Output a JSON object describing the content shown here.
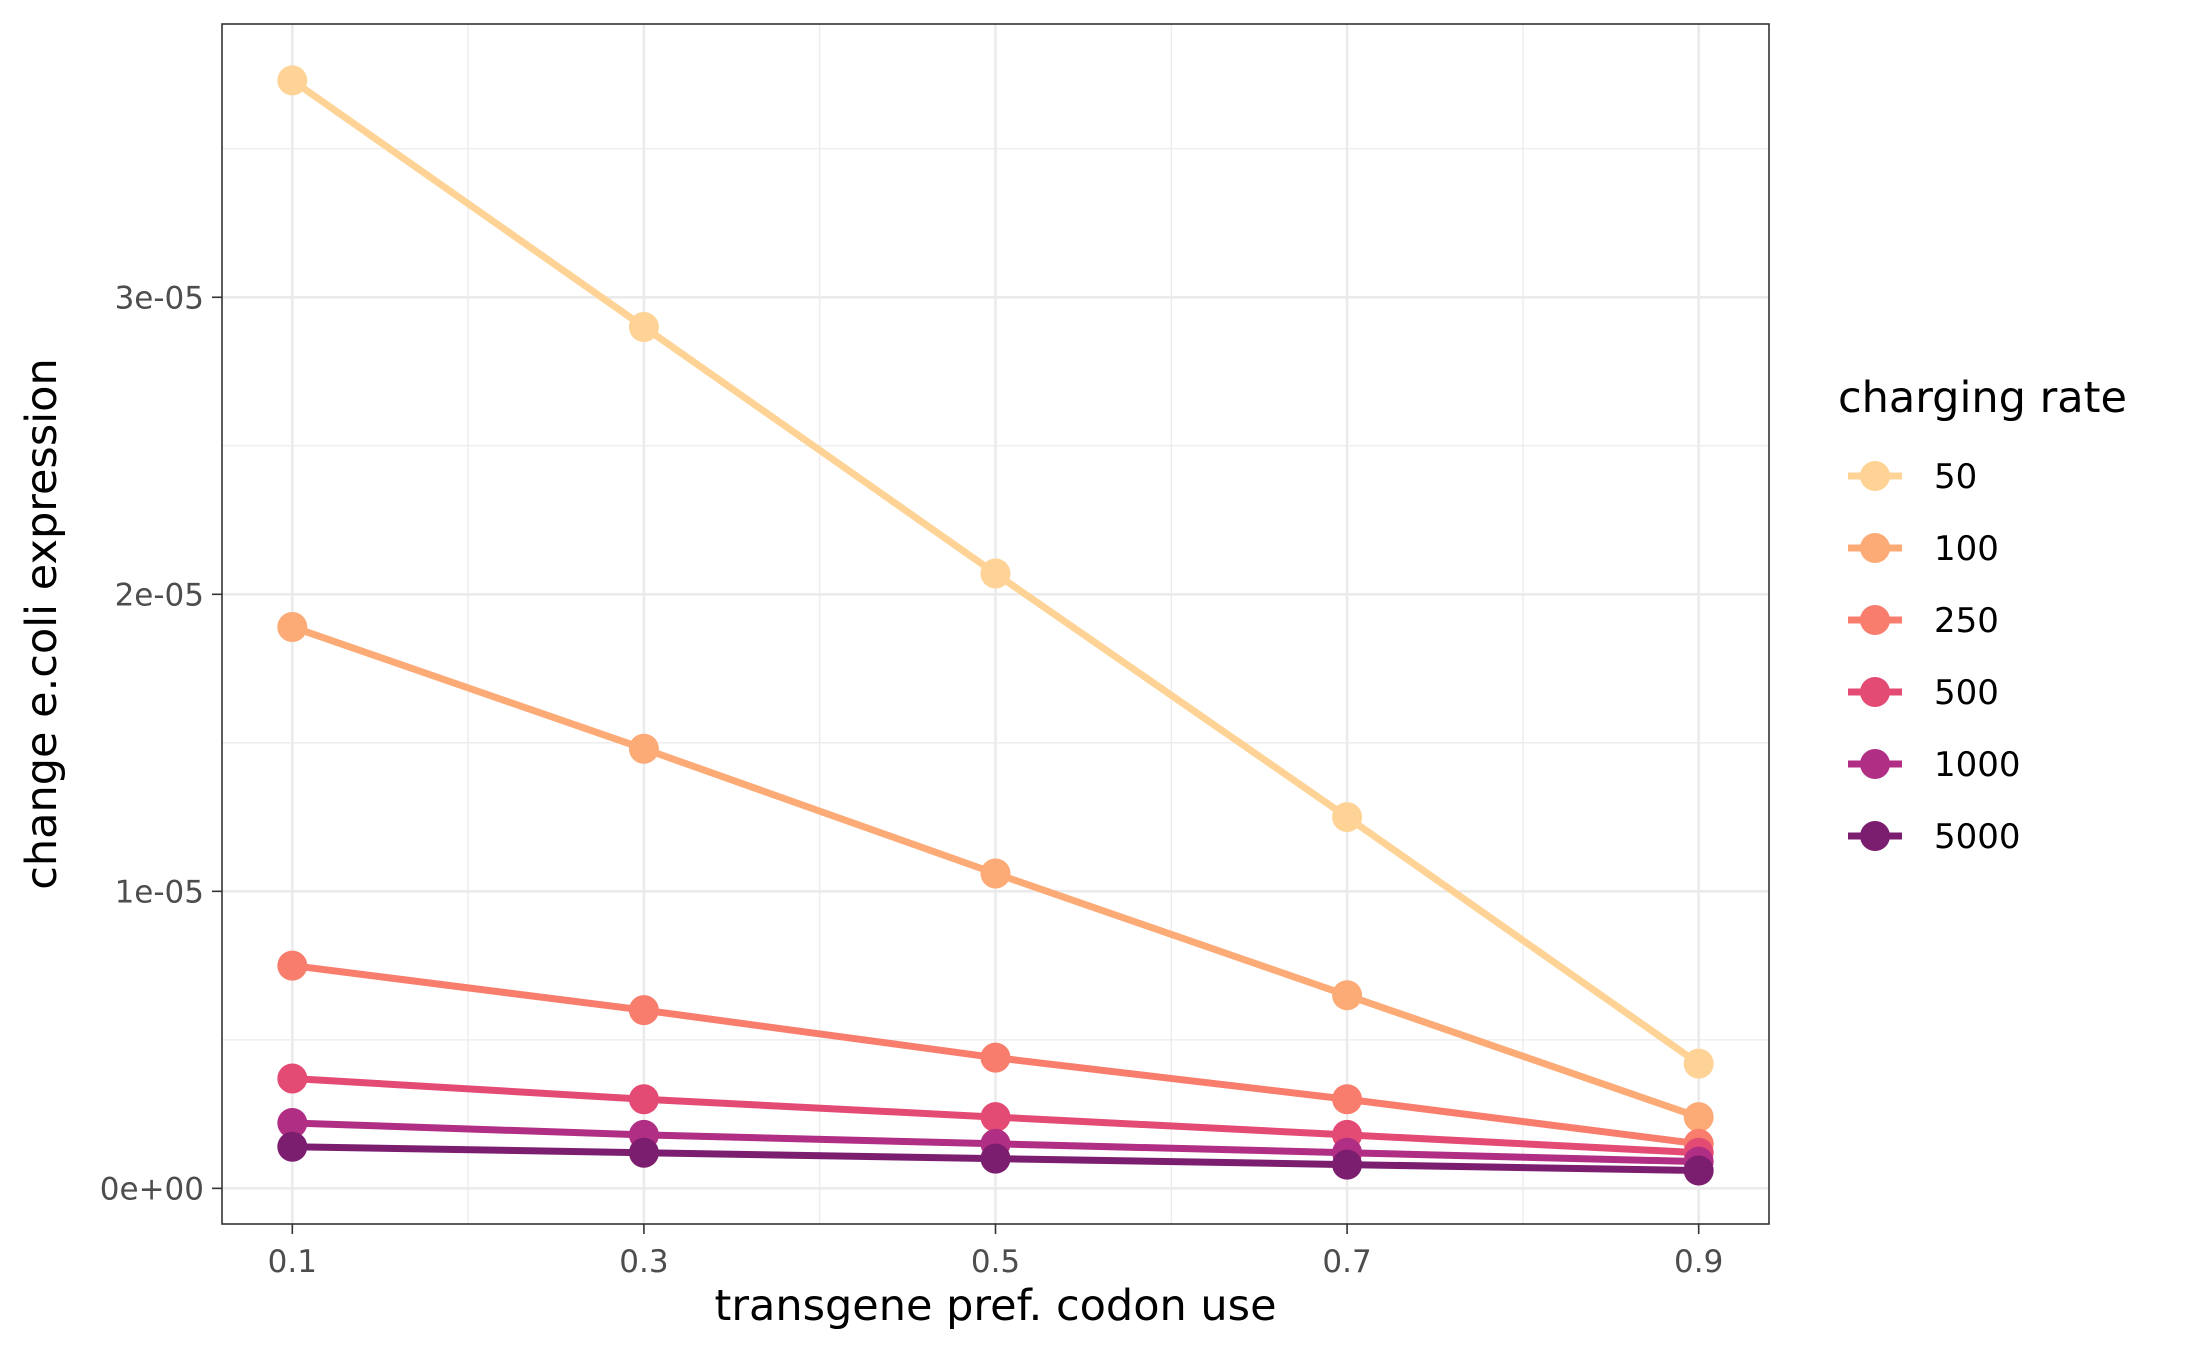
{
  "chart_data": {
    "type": "line",
    "title": "",
    "xlabel": "transgene pref. codon use",
    "ylabel": "change e.coli expression",
    "x": [
      0.1,
      0.3,
      0.5,
      0.7,
      0.9
    ],
    "x_tick_labels": [
      "0.1",
      "0.3",
      "0.5",
      "0.7",
      "0.9"
    ],
    "xlim": [
      0.06,
      0.94
    ],
    "y_ticks": [
      0,
      1e-05,
      2e-05,
      3e-05
    ],
    "y_tick_labels": [
      "0e+00",
      "1e-05",
      "2e-05",
      "3e-05"
    ],
    "ylim": [
      -1.2e-06,
      3.92e-05
    ],
    "grid": true,
    "legend": {
      "title": "charging rate",
      "placement": "right"
    },
    "series": [
      {
        "name": "50",
        "color": "#fed395",
        "values": [
          3.73e-05,
          2.9e-05,
          2.07e-05,
          1.25e-05,
          4.2e-06
        ]
      },
      {
        "name": "100",
        "color": "#fcaa76",
        "values": [
          1.89e-05,
          1.48e-05,
          1.06e-05,
          6.5e-06,
          2.4e-06
        ]
      },
      {
        "name": "250",
        "color": "#f87d6c",
        "values": [
          7.5e-06,
          6e-06,
          4.4e-06,
          3e-06,
          1.5e-06
        ]
      },
      {
        "name": "500",
        "color": "#e44b74",
        "values": [
          3.7e-06,
          3e-06,
          2.4e-06,
          1.8e-06,
          1.2e-06
        ]
      },
      {
        "name": "1000",
        "color": "#b02e83",
        "values": [
          2.2e-06,
          1.8e-06,
          1.5e-06,
          1.2e-06,
          9e-07
        ]
      },
      {
        "name": "5000",
        "color": "#7c1e6f",
        "values": [
          1.4e-06,
          1.2e-06,
          1e-06,
          8e-07,
          6e-07
        ]
      }
    ]
  }
}
